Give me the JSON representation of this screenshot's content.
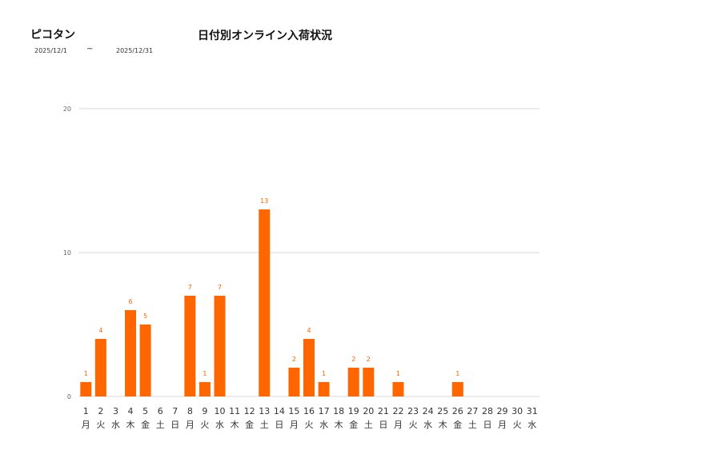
{
  "header": {
    "store_name": "ピコタン",
    "date_from": "2025/12/1",
    "date_separator": "~",
    "date_to": "2025/12/31",
    "chart_title": "日付別オンライン入荷状況"
  },
  "colors": {
    "bar": "#ff6600",
    "grid": "#d9d9d9",
    "axis_text": "#666666",
    "label_text": "#333333"
  },
  "chart_data": {
    "type": "bar",
    "title": "日付別オンライン入荷状況",
    "xlabel": "",
    "ylabel": "",
    "ylim": [
      0,
      20
    ],
    "y_ticks": [
      0,
      10,
      20
    ],
    "grid": true,
    "categories": [
      "1",
      "2",
      "3",
      "4",
      "5",
      "6",
      "7",
      "8",
      "9",
      "10",
      "11",
      "12",
      "13",
      "14",
      "15",
      "16",
      "17",
      "18",
      "19",
      "20",
      "21",
      "22",
      "23",
      "24",
      "25",
      "26",
      "27",
      "28",
      "29",
      "30",
      "31"
    ],
    "weekdays": [
      "月",
      "火",
      "水",
      "木",
      "金",
      "土",
      "日",
      "月",
      "火",
      "水",
      "木",
      "金",
      "土",
      "日",
      "月",
      "火",
      "水",
      "木",
      "金",
      "土",
      "日",
      "月",
      "火",
      "水",
      "木",
      "金",
      "土",
      "日",
      "月",
      "火",
      "水"
    ],
    "values": [
      1,
      4,
      0,
      6,
      5,
      0,
      0,
      7,
      1,
      7,
      0,
      0,
      13,
      0,
      2,
      4,
      1,
      0,
      2,
      2,
      0,
      1,
      0,
      0,
      0,
      1,
      0,
      0,
      0,
      0,
      0
    ]
  }
}
